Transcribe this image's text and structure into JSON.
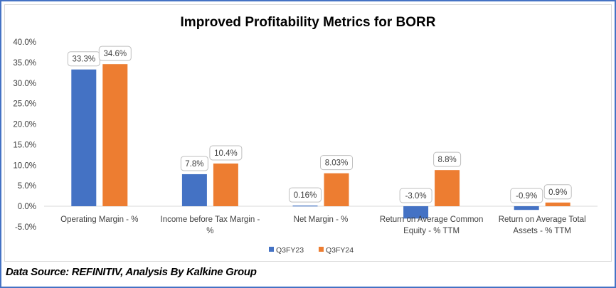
{
  "chart_data": {
    "type": "bar",
    "title": "Improved Profitability Metrics for BORR",
    "xlabel": "",
    "ylabel": "",
    "ylim": [
      -5,
      40
    ],
    "ytick_step": 5,
    "ytick_labels": [
      "-5.0%",
      "0.0%",
      "5.0%",
      "10.0%",
      "15.0%",
      "20.0%",
      "25.0%",
      "30.0%",
      "35.0%",
      "40.0%"
    ],
    "grid": false,
    "legend_position": "bottom",
    "categories": [
      [
        "Operating Margin - %"
      ],
      [
        "Income before Tax Margin -",
        "%"
      ],
      [
        "Net Margin - %"
      ],
      [
        "Return on Average Common",
        "Equity - %  TTM"
      ],
      [
        "Return on Average Total",
        "Assets - % TTM"
      ]
    ],
    "series": [
      {
        "name": "Q3FY23",
        "color": "#4472c4",
        "values": [
          33.3,
          7.8,
          0.16,
          -3.0,
          -0.9
        ],
        "labels": [
          "33.3%",
          "7.8%",
          "0.16%",
          "-3.0%",
          "-0.9%"
        ]
      },
      {
        "name": "Q3FY24",
        "color": "#ed7d31",
        "values": [
          34.6,
          10.4,
          8.03,
          8.8,
          0.9
        ],
        "labels": [
          "34.6%",
          "10.4%",
          "8.03%",
          "8.8%",
          "0.9%"
        ]
      }
    ]
  },
  "footer": {
    "source": "Data Source: REFINITIV, Analysis By Kalkine Group"
  }
}
